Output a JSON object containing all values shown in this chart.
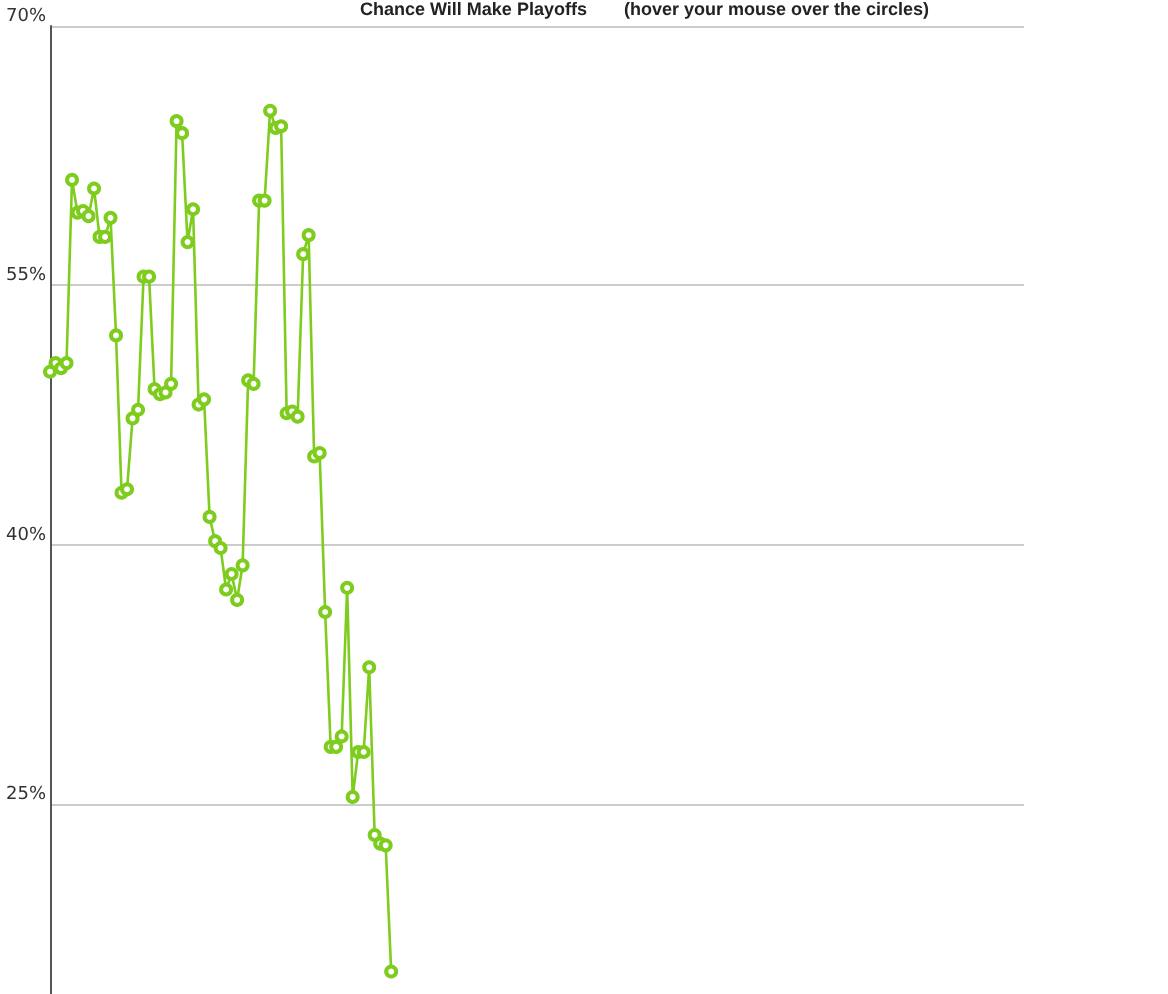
{
  "chart_data": {
    "type": "line",
    "title": "Chance Will Make Playoffs",
    "subtitle": "(hover your mouse over the circles)",
    "categories": [
      null,
      null,
      null,
      null,
      null,
      null,
      null,
      null,
      null,
      null,
      null,
      null,
      null,
      null,
      null,
      null,
      null,
      null,
      null,
      null,
      null,
      null,
      null,
      null,
      null,
      null,
      null,
      null,
      null,
      null,
      null,
      null,
      null,
      null,
      null,
      null,
      null,
      null,
      null,
      null,
      null,
      null,
      null,
      null,
      null,
      null,
      null,
      null,
      null,
      null,
      null,
      null,
      null,
      null,
      null,
      null,
      null,
      null,
      null,
      null,
      null,
      null,
      null,
      null,
      null,
      null,
      null,
      null,
      null,
      null,
      null,
      null,
      null,
      null,
      null,
      null,
      null,
      null,
      null,
      null,
      null,
      null,
      null,
      null,
      null,
      null,
      null,
      null,
      null,
      null,
      null,
      null,
      null,
      null,
      null,
      null,
      null,
      null,
      null,
      null,
      null,
      null,
      null,
      null,
      null,
      null,
      null,
      null,
      null,
      null,
      null,
      null,
      null,
      null,
      null,
      null,
      null,
      null,
      null,
      null,
      null,
      null,
      null,
      null,
      null,
      null,
      null,
      null,
      null,
      null,
      null,
      null,
      null,
      null,
      null,
      null,
      null,
      null,
      null,
      null,
      null,
      null,
      null,
      null,
      null,
      null,
      null,
      null,
      null,
      null,
      null,
      null,
      null,
      null,
      null,
      null,
      null,
      null,
      null,
      null,
      null,
      null,
      null,
      null,
      null,
      null,
      null,
      null,
      null,
      null,
      null,
      null,
      null,
      null,
      null,
      null,
      null,
      null
    ],
    "series": [
      {
        "color": "#7dcc1e",
        "values": [
          50.0,
          50.5,
          50.2,
          50.5,
          61.1,
          59.2,
          59.3,
          59.0,
          60.6,
          57.8,
          57.8,
          58.9,
          52.1,
          43.0,
          43.2,
          47.3,
          47.8,
          55.5,
          55.5,
          49.0,
          48.7,
          48.8,
          49.3,
          64.5,
          63.8,
          57.5,
          59.4,
          48.1,
          48.4,
          41.6,
          40.2,
          39.8,
          37.4,
          38.3,
          36.8,
          38.8,
          49.5,
          49.3,
          59.9,
          59.9,
          65.1,
          64.1,
          64.2,
          47.6,
          47.7,
          47.4,
          56.8,
          57.9,
          45.1,
          45.3,
          36.1,
          28.3,
          28.3,
          28.9,
          37.5,
          25.4,
          28.0,
          28.0,
          32.9,
          23.2,
          22.7,
          22.6,
          15.3,
          null,
          null,
          null,
          null,
          null,
          null,
          null,
          null,
          null,
          null,
          null,
          null,
          null,
          null,
          null,
          null,
          null,
          null,
          null,
          null,
          null,
          null,
          null,
          null,
          null,
          null,
          null,
          null,
          null,
          null,
          null,
          null,
          null,
          null,
          null,
          null,
          null,
          null,
          null,
          null,
          null,
          null,
          null,
          null,
          null,
          null,
          null,
          null,
          null,
          null,
          null,
          null,
          null,
          null,
          null,
          null,
          null,
          null,
          null,
          null,
          null,
          null,
          null,
          null,
          null,
          null,
          null,
          null,
          null,
          null,
          null,
          null,
          null,
          null,
          null,
          null,
          null,
          null,
          null,
          null,
          null,
          null,
          null,
          null,
          null,
          null,
          null,
          null,
          null,
          null,
          null,
          null,
          null,
          null,
          null,
          null,
          null,
          null,
          null,
          null,
          null,
          null,
          null,
          null,
          null,
          null,
          null,
          null,
          null,
          null,
          null,
          null,
          null,
          null,
          null
        ]
      }
    ],
    "ylim": [
      14,
      70
    ],
    "yticks": [
      {
        "value": 25,
        "label": "25%"
      },
      {
        "value": 40,
        "label": "40%"
      },
      {
        "value": 55,
        "label": "55%"
      },
      {
        "value": 70,
        "label": "70%"
      }
    ],
    "grid": "y",
    "marker": "circle",
    "line_style": "solid",
    "tick_labels": "y"
  }
}
